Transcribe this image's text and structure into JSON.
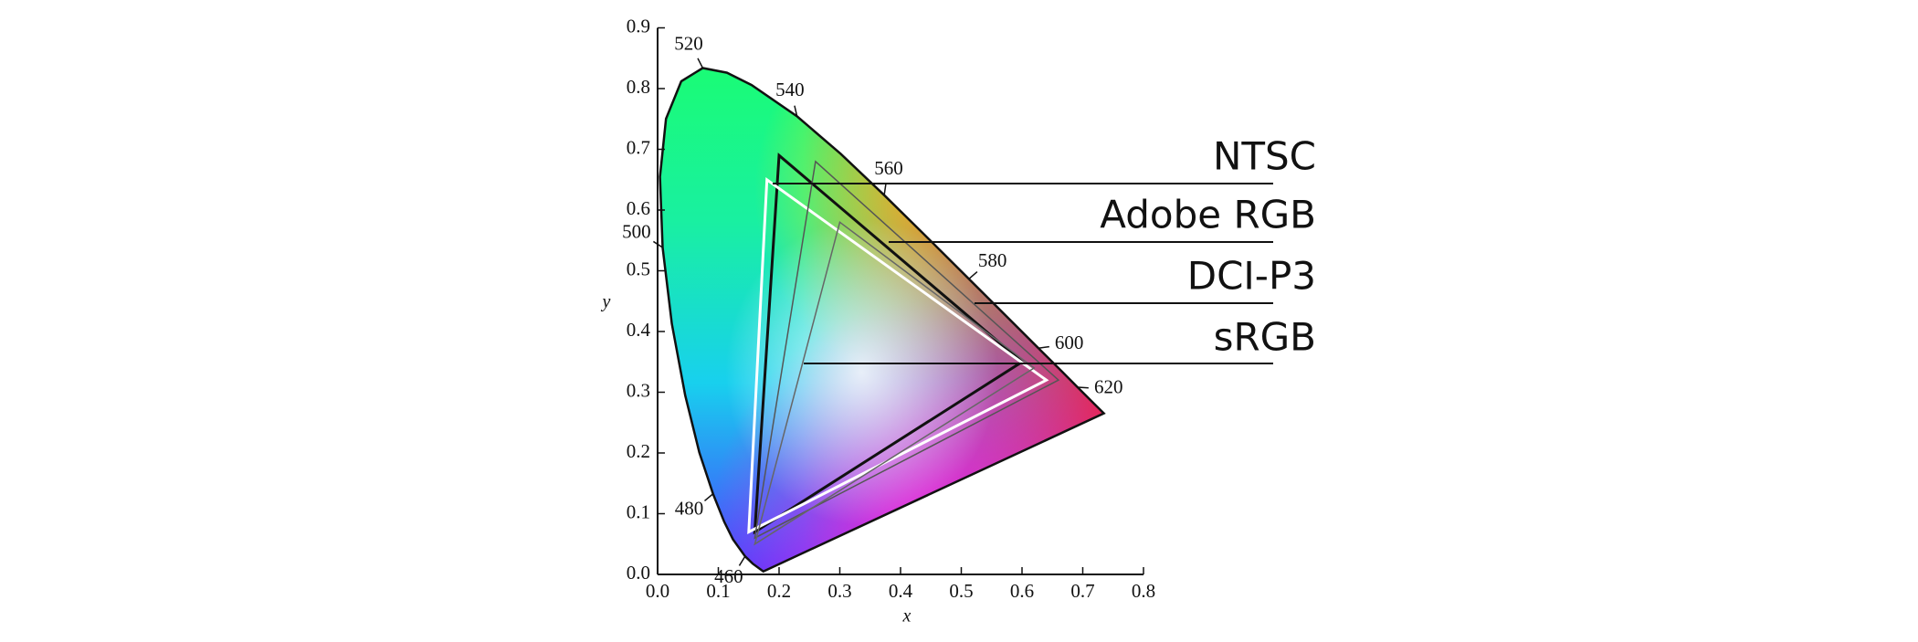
{
  "chart_data": {
    "type": "gamut",
    "xlabel": "x",
    "ylabel": "y",
    "xlim": [
      0,
      0.8
    ],
    "ylim": [
      0,
      0.9
    ],
    "xticks": [
      {
        "value": 0,
        "label": "0.0"
      },
      0.1,
      0.2,
      0.3,
      0.4,
      0.5,
      0.6,
      0.7,
      0.8
    ],
    "yticks": [
      {
        "value": 0,
        "label": "0.0"
      },
      0.1,
      0.2,
      0.3,
      0.4,
      0.5,
      0.6,
      0.7,
      0.8,
      0.9
    ],
    "locus": {
      "x": [
        0.1741,
        0.1566,
        0.144,
        0.1241,
        0.1096,
        0.0913,
        0.0687,
        0.0454,
        0.0235,
        0.0082,
        0.0039,
        0.0139,
        0.0389,
        0.0743,
        0.1142,
        0.1547,
        0.2296,
        0.3016,
        0.3731,
        0.4441,
        0.5125,
        0.5752,
        0.627,
        0.6658,
        0.6915,
        0.719,
        0.7347
      ],
      "y": [
        0.005,
        0.0177,
        0.0297,
        0.0578,
        0.0868,
        0.1327,
        0.2007,
        0.295,
        0.4127,
        0.5384,
        0.6548,
        0.7502,
        0.812,
        0.8338,
        0.8262,
        0.8059,
        0.7543,
        0.6923,
        0.6245,
        0.5547,
        0.4866,
        0.4242,
        0.3725,
        0.334,
        0.3083,
        0.2809,
        0.2653
      ],
      "labels": [
        null,
        null,
        460,
        null,
        null,
        480,
        null,
        null,
        null,
        500,
        null,
        null,
        null,
        520,
        null,
        null,
        540,
        null,
        560,
        null,
        580,
        null,
        600,
        null,
        620,
        null,
        null
      ]
    },
    "series": [
      {
        "name": "NTSC",
        "color": "#111111",
        "x": [
          0.2,
          0.6,
          0.16
        ],
        "y": [
          0.69,
          0.35,
          0.07
        ]
      },
      {
        "name": "Adobe RGB",
        "color": "#ffffff",
        "x": [
          0.18,
          0.64,
          0.15
        ],
        "y": [
          0.65,
          0.32,
          0.07
        ]
      },
      {
        "name": "DCI-P3",
        "color": "#555555",
        "x": [
          0.26,
          0.66,
          0.16
        ],
        "y": [
          0.68,
          0.32,
          0.06
        ]
      },
      {
        "name": "sRGB",
        "color": "#666666",
        "x": [
          0.3,
          0.62,
          0.16
        ],
        "y": [
          0.58,
          0.34,
          0.05
        ]
      }
    ]
  }
}
